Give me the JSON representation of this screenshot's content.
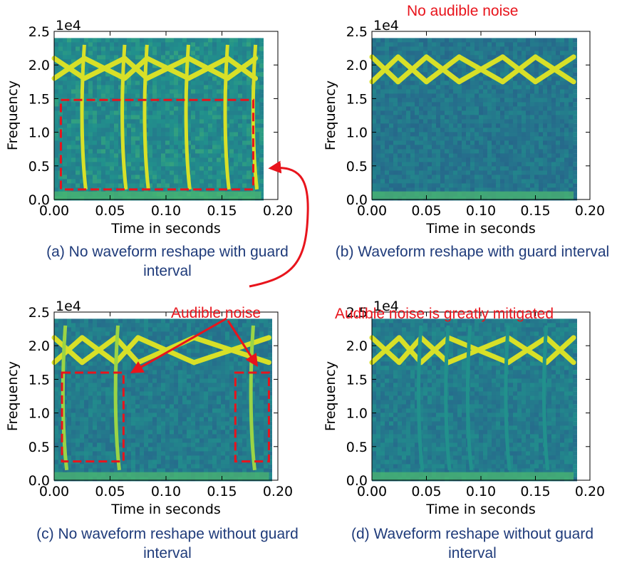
{
  "colors": {
    "annotation": "#e8141c",
    "caption": "#1f3b7a",
    "spectrogram_low": "#2a6e8e",
    "spectrogram_high": "#f6e61a"
  },
  "annotations": {
    "top_right": "No audible noise",
    "middle_left": "Audible noise",
    "middle_right": "Audible noise is greatly mitigated"
  },
  "chart_data": [
    {
      "id": "a",
      "type": "heatmap",
      "caption": "(a) No waveform reshape with guard interval",
      "xlabel": "Time in seconds",
      "ylabel": "Frequency",
      "y_scale_label": "1e4",
      "x_ticks": [
        "0.00",
        "0.05",
        "0.10",
        "0.15",
        "0.20"
      ],
      "y_ticks": [
        "0.0",
        "0.5",
        "1.0",
        "1.5",
        "2.0",
        "2.5"
      ],
      "xlim": [
        0.0,
        0.2
      ],
      "ylim": [
        0.0,
        2.5
      ],
      "data_extent_x": [
        0.0,
        0.185
      ],
      "data_extent_y": [
        0.0,
        2.4
      ],
      "chirp_high": 2.1,
      "chirp_low": 1.8,
      "chirp_boundaries": [
        0.0,
        0.027,
        0.063,
        0.083,
        0.12,
        0.155,
        0.18
      ],
      "vertical_streaks": [
        0.027,
        0.063,
        0.083,
        0.12,
        0.155,
        0.18
      ],
      "streak_intensity": 0.9,
      "background_noise": 0.5,
      "highlight_boxes": [
        {
          "x": [
            0.006,
            0.178
          ],
          "y": [
            0.15,
            1.48
          ]
        }
      ]
    },
    {
      "id": "b",
      "type": "heatmap",
      "caption": "(b) Waveform reshape with guard interval",
      "xlabel": "Time in seconds",
      "ylabel": "Frequency",
      "y_scale_label": "1e4",
      "x_ticks": [
        "0.00",
        "0.05",
        "0.10",
        "0.15",
        "0.20"
      ],
      "y_ticks": [
        "0.0",
        "0.5",
        "1.0",
        "1.5",
        "2.0",
        "2.5"
      ],
      "xlim": [
        0.0,
        0.2
      ],
      "ylim": [
        0.0,
        2.5
      ],
      "data_extent_x": [
        0.0,
        0.185
      ],
      "data_extent_y": [
        0.0,
        2.4
      ],
      "chirp_high": 2.12,
      "chirp_low": 1.75,
      "chirp_boundaries": [
        0.0,
        0.024,
        0.05,
        0.08,
        0.12,
        0.15,
        0.185
      ],
      "vertical_streaks": [],
      "streak_intensity": 0.0,
      "background_noise": 0.35,
      "highlight_boxes": []
    },
    {
      "id": "c",
      "type": "heatmap",
      "caption": "(c) No waveform reshape without guard interval",
      "xlabel": "Time in seconds",
      "ylabel": "Frequency",
      "y_scale_label": "1e4",
      "x_ticks": [
        "0.00",
        "0.05",
        "0.10",
        "0.15",
        "0.20"
      ],
      "y_ticks": [
        "0.0",
        "0.5",
        "1.0",
        "1.5",
        "2.0",
        "2.5"
      ],
      "xlim": [
        0.0,
        0.2
      ],
      "ylim": [
        0.0,
        2.5
      ],
      "data_extent_x": [
        0.0,
        0.192
      ],
      "data_extent_y": [
        0.0,
        2.4
      ],
      "chirp_high": 2.12,
      "chirp_low": 1.75,
      "chirp_boundaries": [
        0.0,
        0.025,
        0.055,
        0.075,
        0.125,
        0.192
      ],
      "vertical_streaks": [
        0.01,
        0.057,
        0.178
      ],
      "streak_intensity": 0.75,
      "background_noise": 0.4,
      "highlight_boxes": [
        {
          "x": [
            0.007,
            0.062
          ],
          "y": [
            0.28,
            1.6
          ]
        },
        {
          "x": [
            0.162,
            0.192
          ],
          "y": [
            0.28,
            1.6
          ]
        }
      ]
    },
    {
      "id": "d",
      "type": "heatmap",
      "caption": "(d) Waveform reshape without guard interval",
      "xlabel": "Time in seconds",
      "ylabel": "Frequency",
      "y_scale_label": "1e4",
      "x_ticks": [
        "0.00",
        "0.05",
        "0.10",
        "0.15",
        "0.20"
      ],
      "y_ticks": [
        "0.0",
        "0.5",
        "1.0",
        "1.5",
        "2.0",
        "2.5"
      ],
      "xlim": [
        0.0,
        0.2
      ],
      "ylim": [
        0.0,
        2.5
      ],
      "data_extent_x": [
        0.0,
        0.185
      ],
      "data_extent_y": [
        0.0,
        2.4
      ],
      "chirp_high": 2.12,
      "chirp_low": 1.75,
      "chirp_boundaries": [
        0.0,
        0.025,
        0.045,
        0.07,
        0.125,
        0.16,
        0.185
      ],
      "vertical_streaks": [
        0.045,
        0.07,
        0.09,
        0.125,
        0.16
      ],
      "streak_intensity": 0.25,
      "background_noise": 0.4,
      "highlight_boxes": []
    }
  ]
}
